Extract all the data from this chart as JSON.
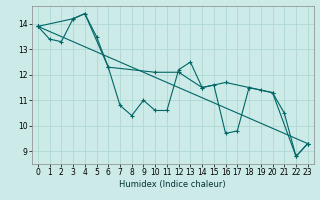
{
  "title": "",
  "xlabel": "Humidex (Indice chaleur)",
  "ylabel": "",
  "bg_color": "#cceae7",
  "line_color": "#006666",
  "grid_color": "#aad4d0",
  "xlim": [
    -0.5,
    23.5
  ],
  "ylim": [
    8.5,
    14.7
  ],
  "yticks": [
    9,
    10,
    11,
    12,
    13,
    14
  ],
  "xticks": [
    0,
    1,
    2,
    3,
    4,
    5,
    6,
    7,
    8,
    9,
    10,
    11,
    12,
    13,
    14,
    15,
    16,
    17,
    18,
    19,
    20,
    21,
    22,
    23
  ],
  "series": [
    {
      "x": [
        0,
        1,
        2,
        3,
        4,
        5,
        6,
        7,
        8,
        9,
        10,
        11,
        12,
        13,
        14,
        15,
        16,
        17,
        18,
        19,
        20,
        21,
        22,
        23
      ],
      "y": [
        13.9,
        13.4,
        13.3,
        14.2,
        14.4,
        13.5,
        12.3,
        10.8,
        10.4,
        11.0,
        10.6,
        10.6,
        12.2,
        12.5,
        11.5,
        11.6,
        9.7,
        9.8,
        11.5,
        11.4,
        11.3,
        10.5,
        8.8,
        9.3
      ]
    },
    {
      "x": [
        0,
        3,
        4,
        6,
        10,
        12,
        14,
        16,
        18,
        20,
        22,
        23
      ],
      "y": [
        13.9,
        14.2,
        14.4,
        12.3,
        12.1,
        12.1,
        11.5,
        11.7,
        11.5,
        11.3,
        8.8,
        9.3
      ]
    },
    {
      "x": [
        0,
        23
      ],
      "y": [
        13.9,
        9.3
      ]
    }
  ]
}
